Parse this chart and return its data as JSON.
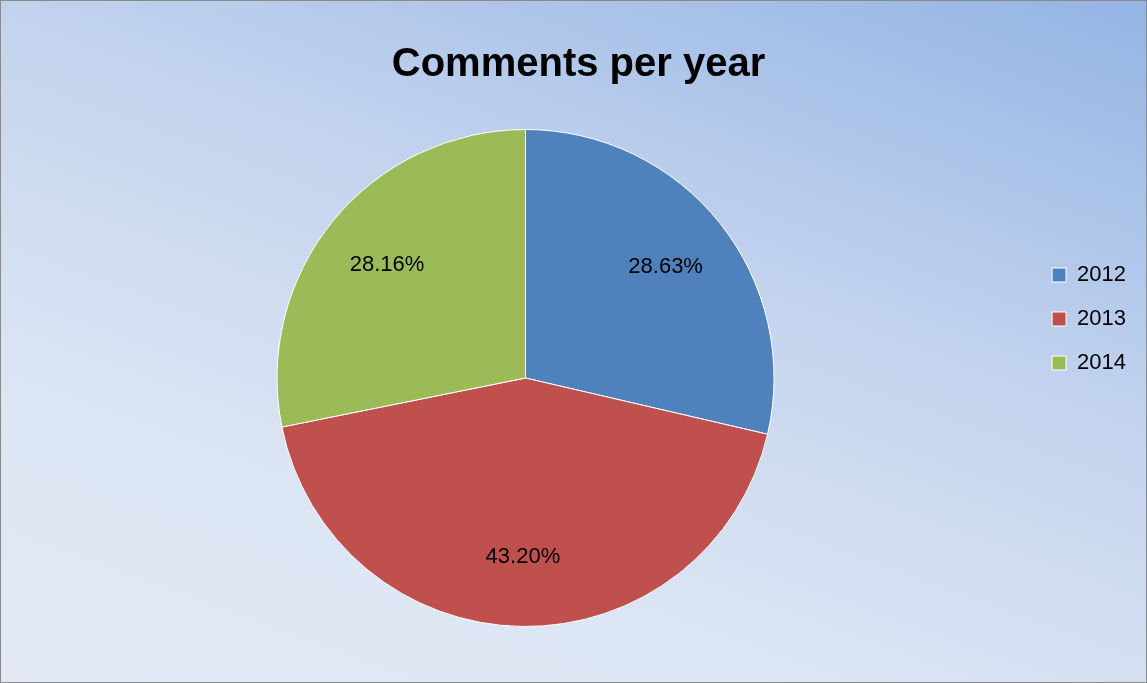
{
  "chart_data": {
    "type": "pie",
    "title": "Comments per year",
    "categories": [
      "2012",
      "2013",
      "2014"
    ],
    "values": [
      28.63,
      43.2,
      28.16
    ],
    "colors": [
      "#4f81bd",
      "#c0504d",
      "#9bbb59"
    ],
    "value_labels": [
      "28.63%",
      "43.20%",
      "28.16%"
    ],
    "legend": "right"
  }
}
